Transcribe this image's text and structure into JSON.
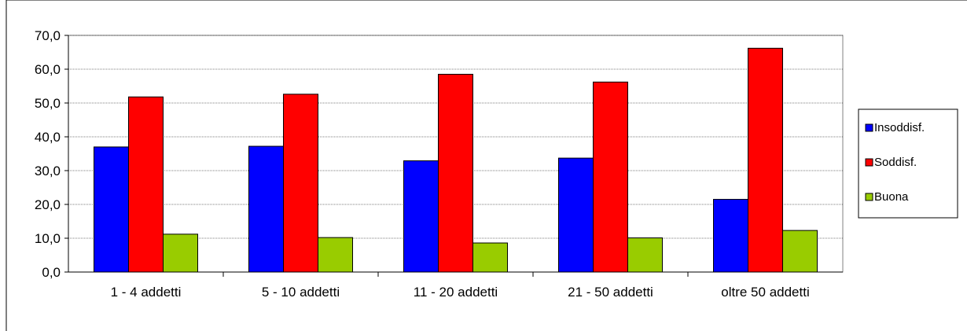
{
  "chart_data": {
    "type": "bar",
    "title": "",
    "xlabel": "",
    "ylabel": "",
    "categories": [
      "1 - 4 addetti",
      "5 - 10 addetti",
      "11 - 20 addetti",
      "21 - 50 addetti",
      "oltre 50 addetti"
    ],
    "series": [
      {
        "name": "Insoddisf.",
        "color": "#0000ff",
        "values": [
          37.0,
          37.2,
          32.9,
          33.7,
          21.5
        ]
      },
      {
        "name": "Soddisf.",
        "color": "#ff0000",
        "values": [
          51.8,
          52.6,
          58.5,
          56.2,
          66.2
        ]
      },
      {
        "name": "Buona",
        "color": "#99cc00",
        "values": [
          11.2,
          10.2,
          8.6,
          10.1,
          12.3
        ]
      }
    ],
    "ylim": [
      0,
      70
    ],
    "yticks": [
      "0,0",
      "10,0",
      "20,0",
      "30,0",
      "40,0",
      "50,0",
      "60,0",
      "70,0"
    ],
    "grid": true,
    "legend": "right"
  }
}
